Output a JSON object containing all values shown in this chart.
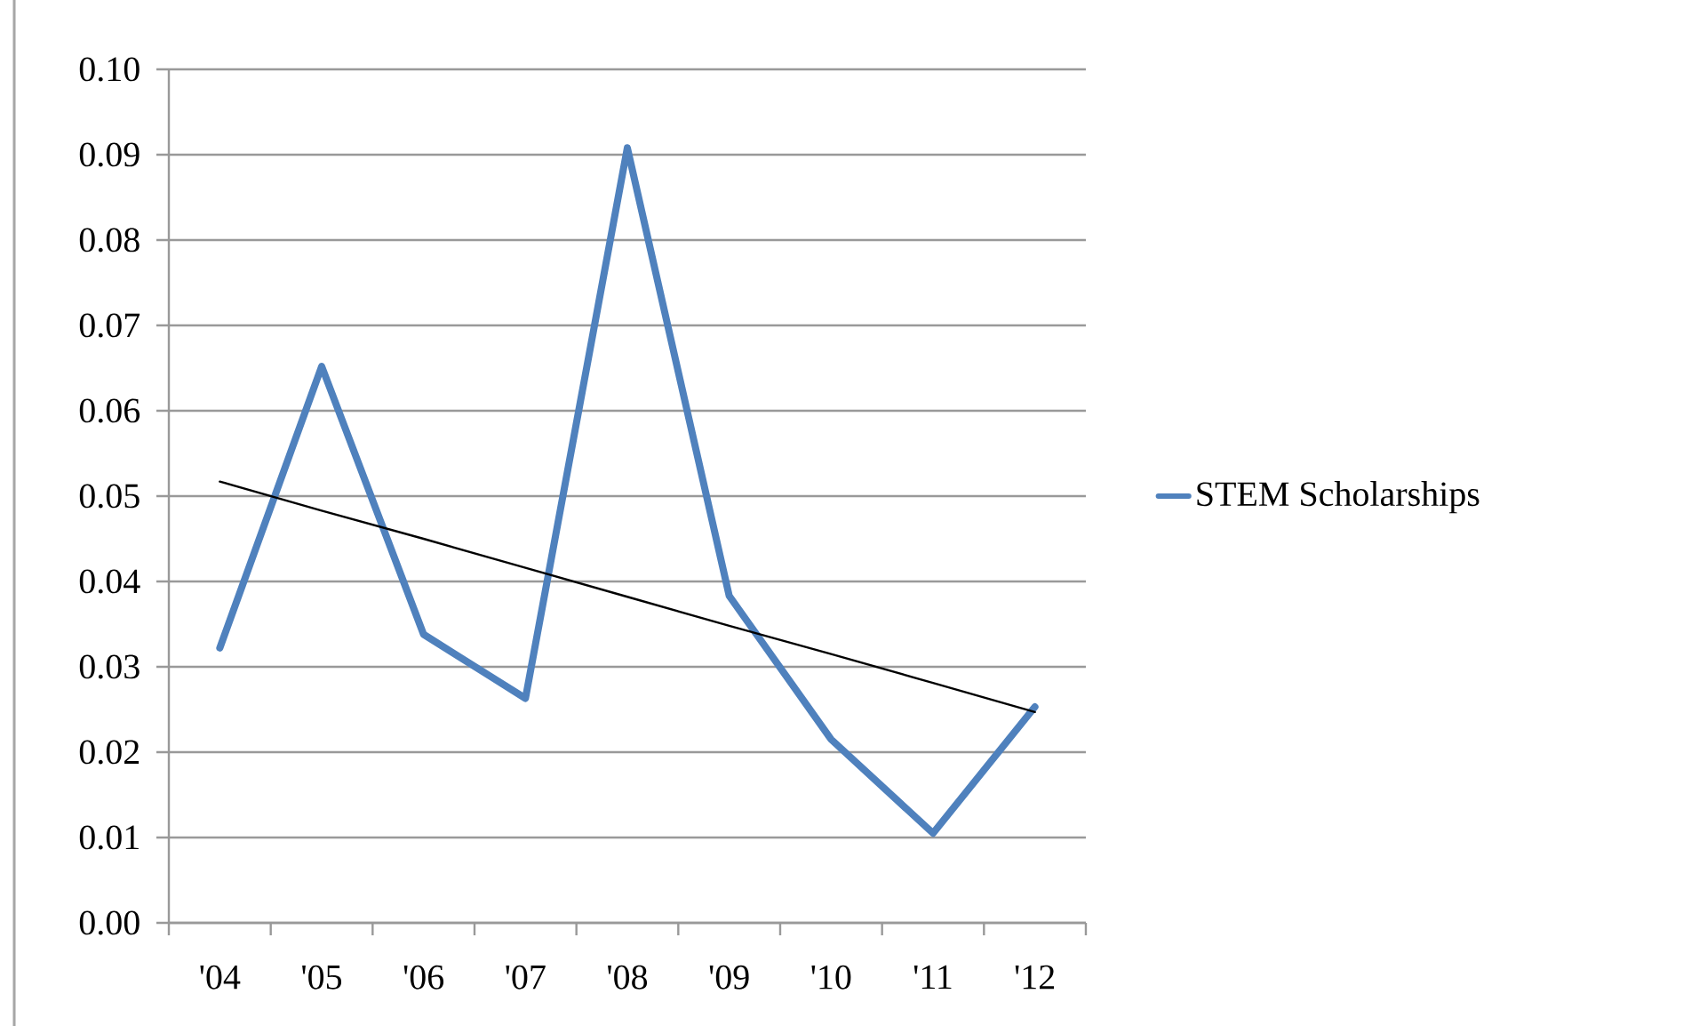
{
  "chart_data": {
    "type": "line",
    "categories": [
      "'04",
      "'05",
      "'06",
      "'07",
      "'08",
      "'09",
      "'10",
      "'11",
      "'12"
    ],
    "series": [
      {
        "name": "STEM Scholarships",
        "color": "#4f81bd",
        "values": [
          0.0322,
          0.0652,
          0.0338,
          0.0263,
          0.0908,
          0.0383,
          0.0215,
          0.0105,
          0.0253
        ]
      },
      {
        "color": "#000000",
        "values": [
          0.0517,
          0.0483,
          0.045,
          0.0416,
          0.0382,
          0.0348,
          0.0315,
          0.0281,
          0.0247
        ]
      }
    ],
    "ylim": [
      0,
      0.1
    ],
    "yticks": [
      {
        "value": 0,
        "label": "0.00"
      },
      0.01,
      0.02,
      0.03,
      0.04,
      0.05,
      0.06,
      0.07,
      0.08,
      0.09,
      {
        "value": 0.1,
        "label": "0.10"
      }
    ],
    "grid": "y",
    "legend": "right",
    "marker": "none",
    "line_style": "solid"
  }
}
